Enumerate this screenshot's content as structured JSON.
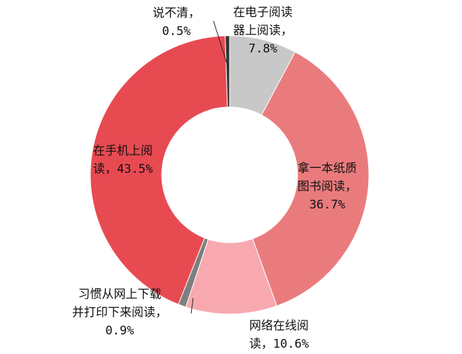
{
  "chart_data": {
    "type": "donut",
    "title": "",
    "start_angle_deg": 0,
    "direction": "clockwise",
    "slices": [
      {
        "name": "在电子阅读器上阅读",
        "value": 7.8,
        "color": "#c8c8c8",
        "label_lines": [
          "在电子阅读",
          "器上阅读，",
          "7.8%"
        ]
      },
      {
        "name": "拿一本纸质图书阅读",
        "value": 36.7,
        "color": "#ea7b7d",
        "label_lines": [
          "拿一本纸质",
          "图书阅读，",
          "36.7%"
        ]
      },
      {
        "name": "网络在线阅读",
        "value": 10.6,
        "color": "#f8a9b0",
        "label_lines": [
          "网络在线阅",
          "读，10.6%"
        ]
      },
      {
        "name": "习惯从网上下载并打印下来阅读",
        "value": 0.9,
        "color": "#7f7f7f",
        "label_lines": [
          "习惯从网上下载",
          "并打印下来阅读，",
          "0.9%"
        ]
      },
      {
        "name": "在手机上阅读",
        "value": 43.5,
        "color": "#e84a52",
        "label_lines": [
          "在手机上阅",
          "读，43.5%"
        ]
      },
      {
        "name": "说不清",
        "value": 0.5,
        "color": "#333333",
        "label_lines": [
          "说不清，",
          "0.5%"
        ]
      }
    ]
  }
}
